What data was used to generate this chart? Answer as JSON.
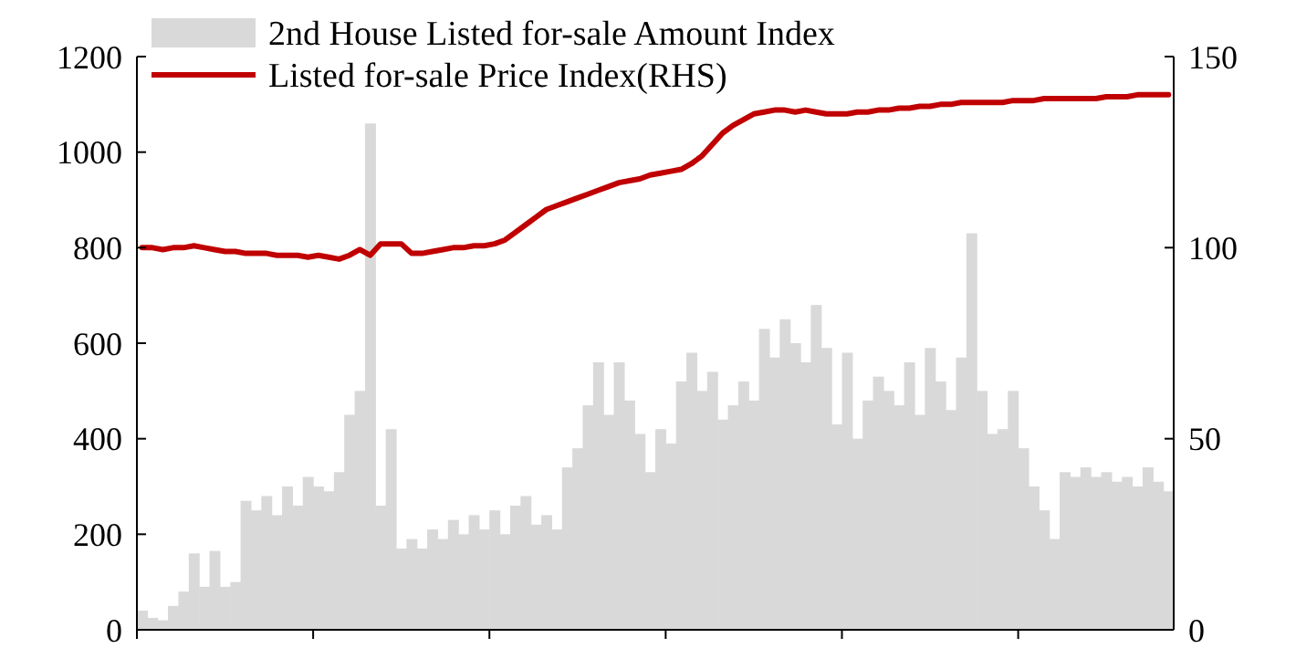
{
  "chart_data": {
    "type": "bar",
    "categories": [
      null,
      null,
      null,
      null,
      null,
      null,
      null,
      null,
      null,
      null,
      null,
      null,
      null,
      null,
      null,
      null,
      null,
      null,
      null,
      null,
      null,
      null,
      null,
      null,
      null,
      null,
      null,
      null,
      null,
      null,
      null,
      null,
      null,
      null,
      null,
      null,
      null,
      null,
      null,
      null,
      null,
      null,
      null,
      null,
      null,
      null,
      null,
      null,
      null,
      null,
      null,
      null,
      null,
      null,
      null,
      null,
      null,
      null,
      null,
      null,
      null,
      null,
      null,
      null,
      null,
      null,
      null,
      null,
      null,
      null,
      null,
      null,
      null,
      null,
      null,
      null,
      null,
      null,
      null,
      null,
      null,
      null,
      null,
      null,
      null,
      null,
      null,
      null,
      null,
      null,
      null,
      null,
      null,
      null,
      null,
      null,
      null,
      null,
      null,
      null
    ],
    "series": [
      {
        "name": "2nd House Listed for-sale Amount Index",
        "color": "#d9d9d9",
        "values": [
          40,
          25,
          20,
          50,
          80,
          160,
          90,
          165,
          90,
          100,
          270,
          250,
          280,
          240,
          300,
          260,
          320,
          300,
          290,
          330,
          450,
          500,
          1060,
          260,
          420,
          170,
          190,
          170,
          210,
          190,
          230,
          200,
          240,
          210,
          250,
          200,
          260,
          280,
          220,
          240,
          210,
          340,
          380,
          470,
          560,
          450,
          560,
          480,
          410,
          330,
          420,
          390,
          520,
          580,
          500,
          540,
          440,
          470,
          520,
          480,
          630,
          570,
          650,
          600,
          560,
          680,
          590,
          430,
          580,
          400,
          480,
          530,
          500,
          470,
          560,
          450,
          590,
          520,
          460,
          570,
          830,
          500,
          410,
          420,
          500,
          380,
          300,
          250,
          190,
          330,
          320,
          340,
          320,
          330,
          310,
          320,
          300,
          340,
          310,
          290
        ]
      },
      {
        "name": "Listed for-sale Price Index(RHS)",
        "type": "line",
        "axis": "y2",
        "color": "#c00000",
        "values": [
          100,
          100,
          99.5,
          100,
          100,
          100.5,
          100,
          99.5,
          99,
          99,
          98.5,
          98.5,
          98.5,
          98,
          98,
          98,
          97.5,
          98,
          97.5,
          97,
          98,
          99.5,
          98,
          101,
          101,
          101,
          98.5,
          98.5,
          99,
          99.5,
          100,
          100,
          100.5,
          100.5,
          101,
          102,
          104,
          106,
          108,
          110,
          111,
          112,
          113,
          114,
          115,
          116,
          117,
          117.5,
          118,
          119,
          119.5,
          120,
          120.5,
          122,
          124,
          127,
          130,
          132,
          133.5,
          135,
          135.5,
          136,
          136,
          135.5,
          136,
          135.5,
          135,
          135,
          135,
          135.5,
          135.5,
          136,
          136,
          136.5,
          136.5,
          137,
          137,
          137.5,
          137.5,
          138,
          138,
          138,
          138,
          138,
          138.5,
          138.5,
          138.5,
          139,
          139,
          139,
          139,
          139,
          139,
          139.5,
          139.5,
          139.5,
          140,
          140,
          140,
          140
        ]
      }
    ],
    "ylim": [
      0,
      1200
    ],
    "yticks": [
      0,
      200,
      400,
      600,
      800,
      1000,
      1200
    ],
    "y2lim": [
      0,
      150
    ],
    "y2ticks": [
      0,
      50,
      100,
      150
    ],
    "legend": "top left",
    "grid": false
  }
}
